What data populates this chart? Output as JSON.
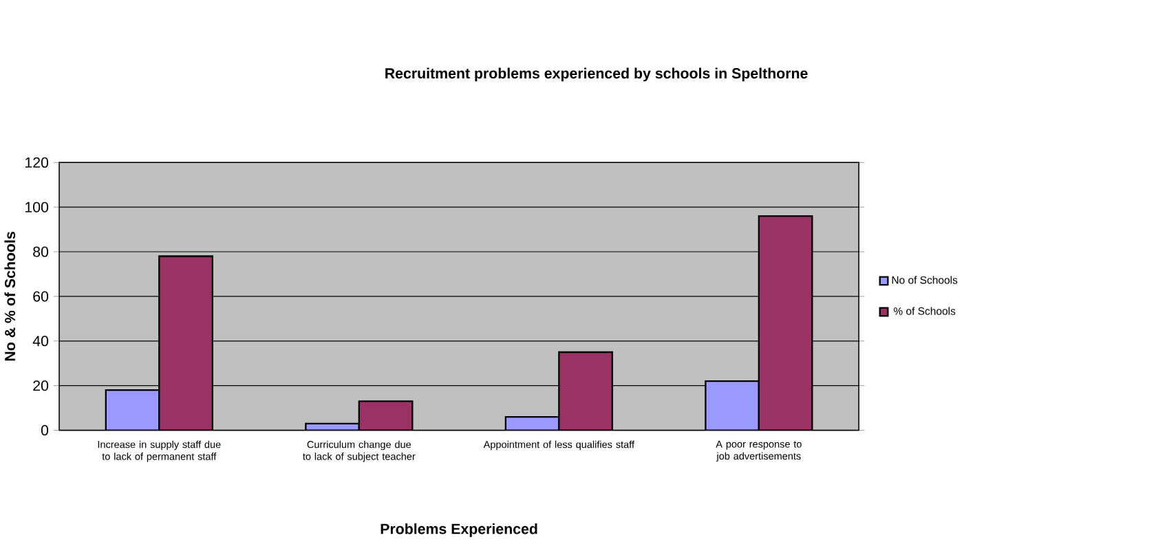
{
  "chart_data": {
    "type": "bar",
    "title": "Recruitment problems experienced by schools in Spelthorne",
    "xlabel": "Problems Experienced",
    "ylabel": "No & % of Schools",
    "categories": [
      "Increase in supply staff due to lack of permanent staff",
      "Curriculum change due to lack of subject teacher",
      "Appointment of less qualifies staff",
      "A poor response to job advertisements"
    ],
    "series": [
      {
        "name": "No of Schools",
        "color": "#9999ff",
        "values": [
          18,
          3,
          6,
          22
        ]
      },
      {
        "name": "% of Schools",
        "color": "#993366",
        "values": [
          78,
          13,
          35,
          96
        ]
      }
    ],
    "ylim": [
      0,
      120
    ],
    "yticks": [
      0,
      20,
      40,
      60,
      80,
      100,
      120
    ],
    "grid": "y",
    "legend": "right"
  }
}
